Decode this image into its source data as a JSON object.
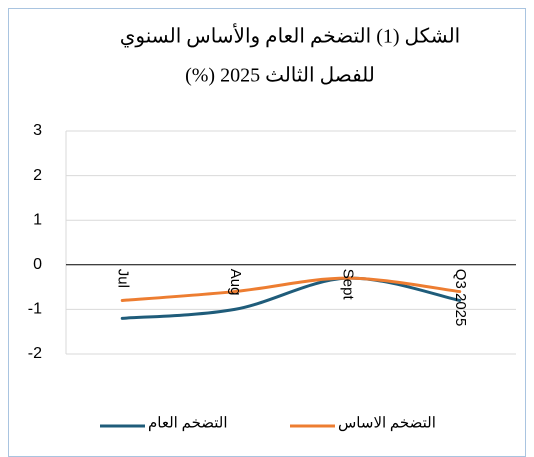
{
  "chart_data": {
    "type": "line",
    "title": [
      "الشكل (1) التضخم العام والأساس السنوي",
      "للفصل الثالث 2025 (%)"
    ],
    "categories": [
      "Jul",
      "Aug",
      "Sept",
      "Q3 2025"
    ],
    "series": [
      {
        "name": "التضخم العام",
        "color": "#1f5c7a",
        "values": [
          -1.2,
          -1.0,
          -0.3,
          -0.8
        ]
      },
      {
        "name": "التضخم الاساس",
        "color": "#ed7d31",
        "values": [
          -0.8,
          -0.6,
          -0.3,
          -0.6
        ]
      }
    ],
    "ylim": [
      -2,
      3
    ],
    "yticks": [
      -2,
      -1,
      0,
      1,
      2,
      3
    ],
    "grid": true,
    "smooth": true,
    "legend": "bottom"
  }
}
